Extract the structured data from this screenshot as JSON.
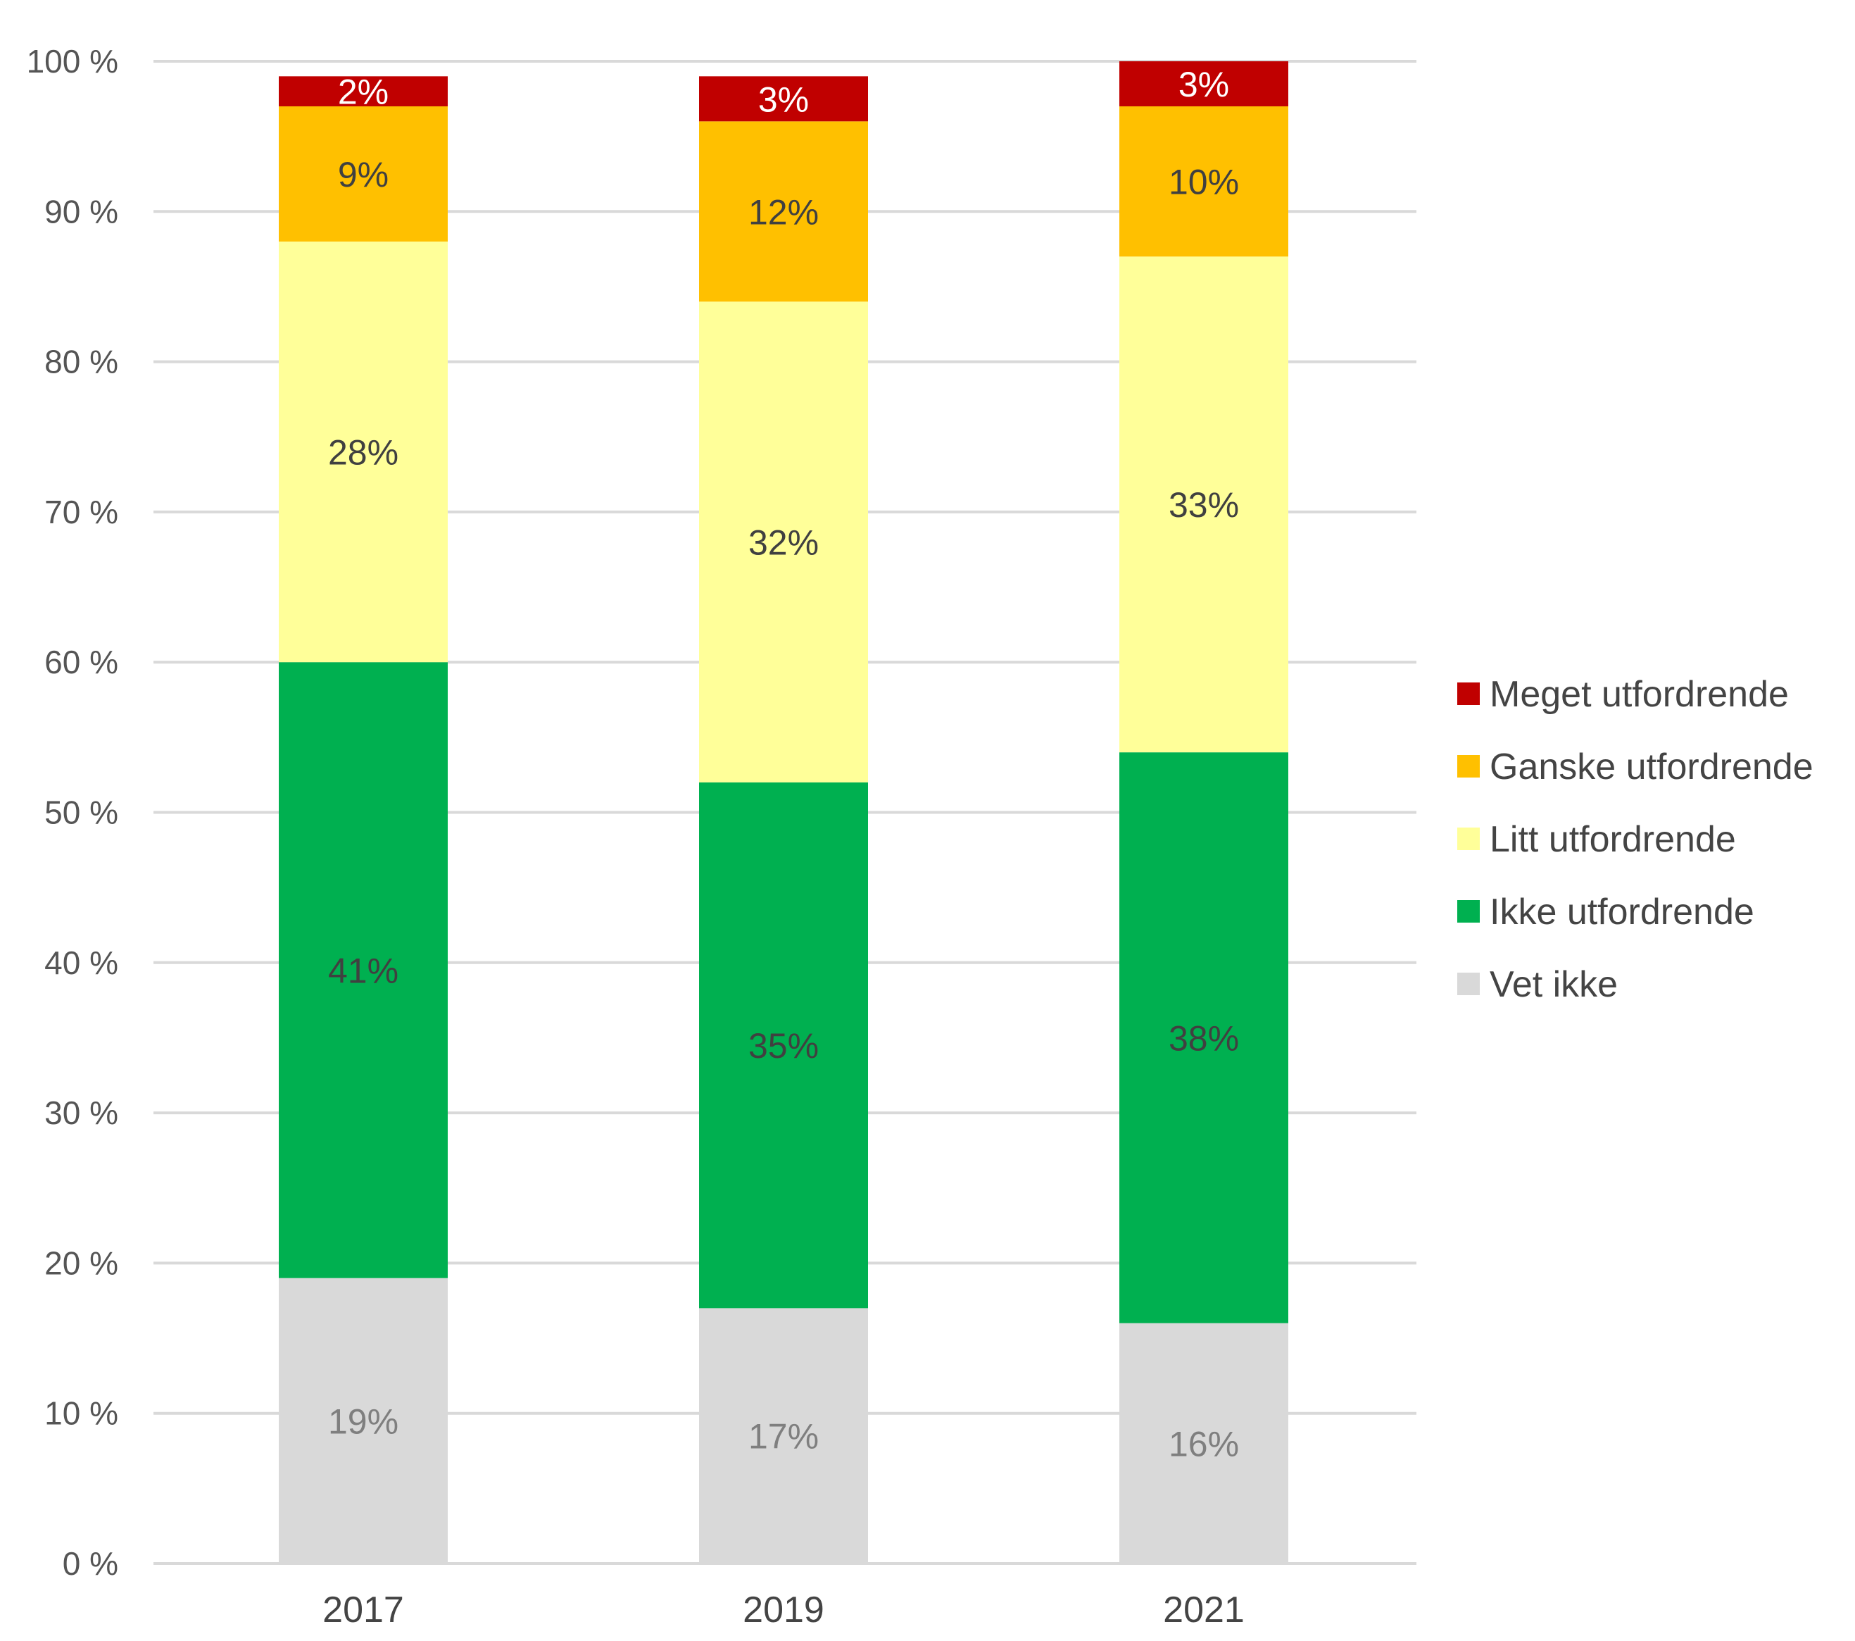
{
  "chart_data": {
    "type": "bar",
    "stacked": true,
    "categories": [
      "2017",
      "2019",
      "2021"
    ],
    "yticks": [
      "0 %",
      "10 %",
      "20 %",
      "30 %",
      "40 %",
      "50 %",
      "60 %",
      "70 %",
      "80 %",
      "90 %",
      "100 %"
    ],
    "ylim": [
      0,
      100
    ],
    "grid": true,
    "legend_position": "right",
    "series": [
      {
        "name": "Vet ikke",
        "color": "#d9d9d9",
        "label_color": "#7f7f7f",
        "values": [
          19,
          17,
          16
        ],
        "labels": [
          "19%",
          "17%",
          "16%"
        ]
      },
      {
        "name": "Ikke utfordrende",
        "color": "#00b050",
        "label_color": "#404040",
        "values": [
          41,
          35,
          38
        ],
        "labels": [
          "41%",
          "35%",
          "38%"
        ]
      },
      {
        "name": "Litt utfordrende",
        "color": "#ffff99",
        "label_color": "#404040",
        "values": [
          28,
          32,
          33
        ],
        "labels": [
          "28%",
          "32%",
          "33%"
        ]
      },
      {
        "name": "Ganske utfordrende",
        "color": "#ffc000",
        "label_color": "#404040",
        "values": [
          9,
          12,
          10
        ],
        "labels": [
          "9%",
          "12%",
          "10%"
        ]
      },
      {
        "name": "Meget utfordrende",
        "color": "#c00000",
        "label_color": "#ffffff",
        "values": [
          2,
          3,
          3
        ],
        "labels": [
          "2%",
          "3%",
          "3%"
        ]
      }
    ],
    "legend_order": [
      "Meget utfordrende",
      "Ganske utfordrende",
      "Litt utfordrende",
      "Ikke utfordrende",
      "Vet ikke"
    ]
  }
}
